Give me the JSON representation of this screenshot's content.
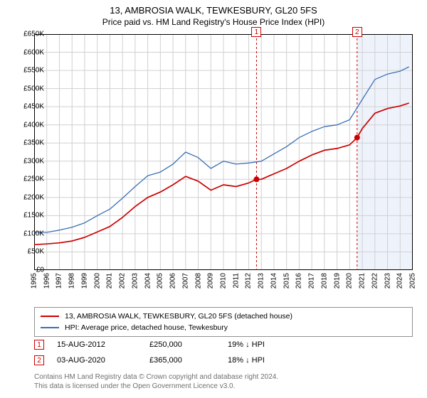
{
  "header": {
    "title": "13, AMBROSIA WALK, TEWKESBURY, GL20 5FS",
    "subtitle": "Price paid vs. HM Land Registry's House Price Index (HPI)"
  },
  "chart": {
    "type": "line",
    "plot_background": "#ffffff",
    "axis_color": "#000000",
    "grid_color": "#d0d0d0",
    "plot_border_width": 1,
    "x": {
      "min": 1995,
      "max": 2025,
      "ticks": [
        1995,
        1996,
        1997,
        1998,
        1999,
        2000,
        2001,
        2002,
        2003,
        2004,
        2005,
        2006,
        2007,
        2008,
        2009,
        2010,
        2011,
        2012,
        2013,
        2014,
        2015,
        2016,
        2017,
        2018,
        2019,
        2020,
        2021,
        2022,
        2023,
        2024,
        2025
      ],
      "label_fontsize": 10,
      "label_rotation": -90
    },
    "y": {
      "min": 0,
      "max": 650000,
      "step": 50000,
      "prefix": "£",
      "suffix_k": true,
      "label_fontsize": 10
    },
    "shaded_future": {
      "from_x": 2020.6,
      "fill": "#eef3fb"
    },
    "series": [
      {
        "id": "price_paid",
        "label": "13, AMBROSIA WALK, TEWKESBURY, GL20 5FS (detached house)",
        "color": "#cc0000",
        "width": 1.7,
        "data": [
          [
            1995,
            70000
          ],
          [
            1996,
            72000
          ],
          [
            1997,
            75000
          ],
          [
            1998,
            80000
          ],
          [
            1999,
            90000
          ],
          [
            2000,
            105000
          ],
          [
            2001,
            120000
          ],
          [
            2002,
            145000
          ],
          [
            2003,
            175000
          ],
          [
            2004,
            200000
          ],
          [
            2005,
            215000
          ],
          [
            2006,
            235000
          ],
          [
            2007,
            258000
          ],
          [
            2008,
            245000
          ],
          [
            2009,
            220000
          ],
          [
            2010,
            235000
          ],
          [
            2011,
            230000
          ],
          [
            2012,
            240000
          ],
          [
            2012.62,
            250000
          ],
          [
            2013,
            250000
          ],
          [
            2014,
            265000
          ],
          [
            2015,
            280000
          ],
          [
            2016,
            300000
          ],
          [
            2017,
            317000
          ],
          [
            2018,
            330000
          ],
          [
            2019,
            335000
          ],
          [
            2020,
            345000
          ],
          [
            2020.59,
            365000
          ],
          [
            2021,
            390000
          ],
          [
            2022,
            432000
          ],
          [
            2023,
            445000
          ],
          [
            2024,
            452000
          ],
          [
            2024.7,
            460000
          ]
        ]
      },
      {
        "id": "hpi",
        "label": "HPI: Average price, detached house, Tewkesbury",
        "color": "#3b6fb6",
        "width": 1.3,
        "data": [
          [
            1995,
            105000
          ],
          [
            1996,
            104000
          ],
          [
            1997,
            110000
          ],
          [
            1998,
            118000
          ],
          [
            1999,
            130000
          ],
          [
            2000,
            150000
          ],
          [
            2001,
            168000
          ],
          [
            2002,
            198000
          ],
          [
            2003,
            230000
          ],
          [
            2004,
            260000
          ],
          [
            2005,
            270000
          ],
          [
            2006,
            292000
          ],
          [
            2007,
            325000
          ],
          [
            2008,
            310000
          ],
          [
            2009,
            280000
          ],
          [
            2010,
            300000
          ],
          [
            2011,
            292000
          ],
          [
            2012,
            295000
          ],
          [
            2013,
            300000
          ],
          [
            2014,
            320000
          ],
          [
            2015,
            340000
          ],
          [
            2016,
            365000
          ],
          [
            2017,
            382000
          ],
          [
            2018,
            395000
          ],
          [
            2019,
            400000
          ],
          [
            2020,
            414000
          ],
          [
            2021,
            470000
          ],
          [
            2022,
            525000
          ],
          [
            2023,
            540000
          ],
          [
            2024,
            548000
          ],
          [
            2024.7,
            560000
          ]
        ]
      }
    ],
    "sale_markers": [
      {
        "n": "1",
        "x": 2012.62,
        "y": 250000,
        "line_color": "#cc0000",
        "line_dash": "3,3",
        "dot_color": "#cc0000",
        "dot_radius": 4,
        "box_border": "#cc0000",
        "box_text": "#cc0000",
        "box_y": -10
      },
      {
        "n": "2",
        "x": 2020.59,
        "y": 365000,
        "line_color": "#cc0000",
        "line_dash": "3,3",
        "dot_color": "#cc0000",
        "dot_radius": 4,
        "box_border": "#cc0000",
        "box_text": "#cc0000",
        "box_y": -10
      }
    ]
  },
  "legend": {
    "border_color": "#909090",
    "rows": [
      {
        "color": "#cc0000",
        "text": "13, AMBROSIA WALK, TEWKESBURY, GL20 5FS (detached house)"
      },
      {
        "color": "#3b6fb6",
        "text": "HPI: Average price, detached house, Tewkesbury"
      }
    ]
  },
  "sales_table": [
    {
      "n": "1",
      "color": "#cc0000",
      "date": "15-AUG-2012",
      "price": "£250,000",
      "pct": "19% ↓ HPI"
    },
    {
      "n": "2",
      "color": "#cc0000",
      "date": "03-AUG-2020",
      "price": "£365,000",
      "pct": "18% ↓ HPI"
    }
  ],
  "footer": {
    "line1": "Contains HM Land Registry data © Crown copyright and database right 2024.",
    "line2": "This data is licensed under the Open Government Licence v3.0."
  }
}
